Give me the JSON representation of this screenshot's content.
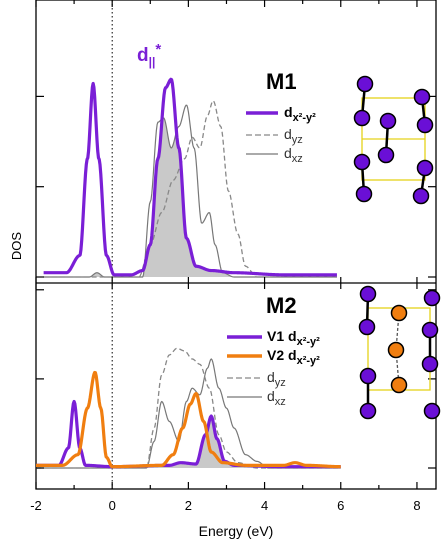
{
  "chart_data": [
    {
      "type": "line",
      "panel": "M1",
      "title": "M1",
      "annotation": "d||*",
      "ylabel": "DOS",
      "xlabel": "Energy (eV)",
      "xlim": [
        -2,
        8.5
      ],
      "x_ticks": [
        -2,
        0,
        2,
        4,
        6,
        8
      ],
      "fermi_level": 0,
      "legend_position": "upper-right",
      "series": [
        {
          "name": "dx²-y²",
          "color": "#7a1fd6",
          "style": "solid-thick",
          "points": [
            [
              -1.8,
              0.02
            ],
            [
              -1.2,
              0.02
            ],
            [
              -0.85,
              0.1
            ],
            [
              -0.65,
              0.55
            ],
            [
              -0.5,
              0.9
            ],
            [
              -0.35,
              0.55
            ],
            [
              -0.15,
              0.1
            ],
            [
              0.05,
              0.01
            ],
            [
              0.5,
              0.01
            ],
            [
              0.8,
              0.03
            ],
            [
              1.0,
              0.15
            ],
            [
              1.2,
              0.55
            ],
            [
              1.4,
              0.88
            ],
            [
              1.55,
              0.92
            ],
            [
              1.75,
              0.6
            ],
            [
              1.95,
              0.18
            ],
            [
              2.2,
              0.05
            ],
            [
              2.6,
              0.03
            ],
            [
              3.2,
              0.02
            ],
            [
              4.5,
              0.01
            ],
            [
              5.9,
              0.01
            ]
          ]
        },
        {
          "name": "dyz",
          "color": "#888888",
          "style": "dashed",
          "points": [
            [
              -1.8,
              0.0
            ],
            [
              0.0,
              0.0
            ],
            [
              0.7,
              0.0
            ],
            [
              1.0,
              0.15
            ],
            [
              1.3,
              0.3
            ],
            [
              1.6,
              0.45
            ],
            [
              1.9,
              0.55
            ],
            [
              2.1,
              0.65
            ],
            [
              2.3,
              0.6
            ],
            [
              2.5,
              0.75
            ],
            [
              2.65,
              0.82
            ],
            [
              2.85,
              0.7
            ],
            [
              3.05,
              0.4
            ],
            [
              3.3,
              0.2
            ],
            [
              3.5,
              0.05
            ],
            [
              3.8,
              0.0
            ],
            [
              5.9,
              0.0
            ]
          ]
        },
        {
          "name": "dxz",
          "color": "#777777",
          "style": "solid-thin",
          "points": [
            [
              -1.8,
              0.0
            ],
            [
              -0.6,
              0.0
            ],
            [
              -0.4,
              0.02
            ],
            [
              -0.2,
              0.0
            ],
            [
              0.8,
              0.0
            ],
            [
              1.0,
              0.35
            ],
            [
              1.2,
              0.72
            ],
            [
              1.35,
              0.74
            ],
            [
              1.55,
              0.6
            ],
            [
              1.75,
              0.7
            ],
            [
              1.95,
              0.8
            ],
            [
              2.15,
              0.6
            ],
            [
              2.35,
              0.25
            ],
            [
              2.55,
              0.3
            ],
            [
              2.7,
              0.15
            ],
            [
              2.9,
              0.02
            ],
            [
              3.2,
              0.0
            ],
            [
              5.9,
              0.0
            ]
          ]
        }
      ]
    },
    {
      "type": "line",
      "panel": "M2",
      "title": "M2",
      "ylabel": "DOS",
      "xlabel": "Energy (eV)",
      "xlim": [
        -2,
        8.5
      ],
      "x_ticks": [
        -2,
        0,
        2,
        4,
        6,
        8
      ],
      "fermi_level": 0,
      "legend_position": "right",
      "series": [
        {
          "name": "V1 dx²-y²",
          "color": "#7a1fd6",
          "style": "solid-thick",
          "points": [
            [
              -2.0,
              0.02
            ],
            [
              -1.4,
              0.02
            ],
            [
              -1.15,
              0.15
            ],
            [
              -1.0,
              0.5
            ],
            [
              -0.85,
              0.15
            ],
            [
              -0.7,
              0.02
            ],
            [
              0.0,
              0.01
            ],
            [
              1.5,
              0.02
            ],
            [
              1.8,
              0.04
            ],
            [
              2.2,
              0.03
            ],
            [
              2.45,
              0.25
            ],
            [
              2.6,
              0.39
            ],
            [
              2.75,
              0.22
            ],
            [
              2.95,
              0.05
            ],
            [
              3.2,
              0.02
            ],
            [
              4.5,
              0.01
            ],
            [
              6.0,
              0.01
            ]
          ]
        },
        {
          "name": "V2 dx²-y²",
          "color": "#f07e10",
          "style": "solid-thick",
          "points": [
            [
              -2.0,
              0.02
            ],
            [
              -1.3,
              0.02
            ],
            [
              -0.9,
              0.1
            ],
            [
              -0.65,
              0.45
            ],
            [
              -0.45,
              0.72
            ],
            [
              -0.3,
              0.45
            ],
            [
              -0.15,
              0.08
            ],
            [
              0.0,
              0.01
            ],
            [
              1.3,
              0.02
            ],
            [
              1.6,
              0.1
            ],
            [
              1.85,
              0.3
            ],
            [
              2.05,
              0.48
            ],
            [
              2.2,
              0.56
            ],
            [
              2.4,
              0.35
            ],
            [
              2.6,
              0.12
            ],
            [
              2.9,
              0.04
            ],
            [
              3.5,
              0.02
            ],
            [
              4.5,
              0.02
            ],
            [
              4.8,
              0.04
            ],
            [
              5.1,
              0.02
            ],
            [
              6.0,
              0.01
            ]
          ]
        },
        {
          "name": "dyz",
          "color": "#888888",
          "style": "dashed",
          "points": [
            [
              -2.0,
              0.0
            ],
            [
              0.9,
              0.0
            ],
            [
              1.1,
              0.3
            ],
            [
              1.3,
              0.7
            ],
            [
              1.5,
              0.85
            ],
            [
              1.7,
              0.9
            ],
            [
              1.9,
              0.88
            ],
            [
              2.1,
              0.82
            ],
            [
              2.3,
              0.78
            ],
            [
              2.55,
              0.6
            ],
            [
              2.8,
              0.25
            ],
            [
              3.0,
              0.12
            ],
            [
              3.3,
              0.04
            ],
            [
              3.8,
              0.0
            ],
            [
              6.0,
              0.0
            ]
          ]
        },
        {
          "name": "dxz",
          "color": "#777777",
          "style": "solid-thin",
          "points": [
            [
              -2.0,
              0.0
            ],
            [
              0.9,
              0.0
            ],
            [
              1.1,
              0.2
            ],
            [
              1.3,
              0.5
            ],
            [
              1.5,
              0.35
            ],
            [
              1.75,
              0.2
            ],
            [
              1.95,
              0.5
            ],
            [
              2.1,
              0.6
            ],
            [
              2.3,
              0.55
            ],
            [
              2.5,
              0.75
            ],
            [
              2.6,
              0.82
            ],
            [
              2.8,
              0.6
            ],
            [
              3.0,
              0.45
            ],
            [
              3.2,
              0.3
            ],
            [
              3.5,
              0.1
            ],
            [
              3.8,
              0.05
            ],
            [
              4.1,
              0.0
            ],
            [
              6.0,
              0.0
            ]
          ]
        }
      ]
    }
  ]
}
